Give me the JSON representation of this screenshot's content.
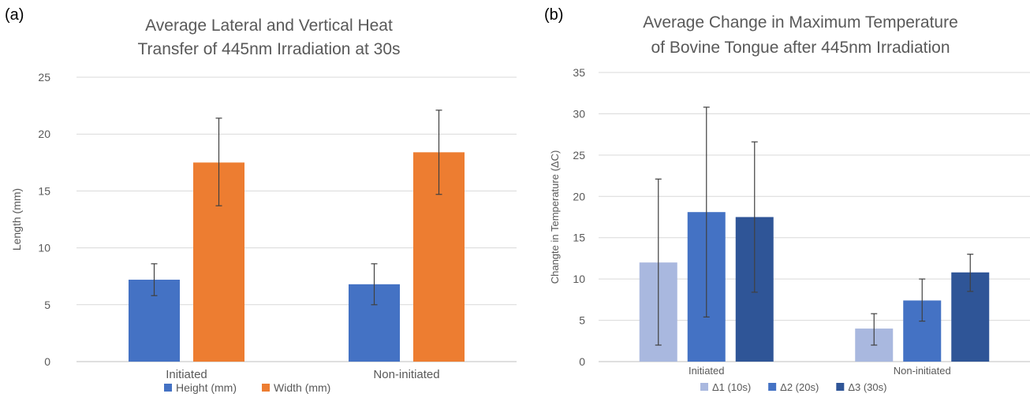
{
  "panels": {
    "a": {
      "tag": "(a)"
    },
    "b": {
      "tag": "(b)"
    }
  },
  "chart_data": [
    {
      "type": "bar",
      "title_lines": [
        "Average Lateral and Vertical Heat",
        "Transfer of 445nm Irradiation at 30s"
      ],
      "xlabel": "",
      "ylabel": "Length (mm)",
      "ylim": [
        0,
        25
      ],
      "yticks": [
        0,
        5,
        10,
        15,
        20,
        25
      ],
      "grid": true,
      "legend_position": "bottom",
      "categories": [
        "Initiated",
        "Non-initiated"
      ],
      "series": [
        {
          "name": "Height (mm)",
          "color": "#4472C4",
          "values": [
            7.2,
            6.8
          ],
          "error_low": [
            5.8,
            5.0
          ],
          "error_high": [
            8.6,
            8.6
          ]
        },
        {
          "name": "Width (mm)",
          "color": "#ED7D31",
          "values": [
            17.5,
            18.4
          ],
          "error_low": [
            13.7,
            14.7
          ],
          "error_high": [
            21.4,
            22.1
          ]
        }
      ]
    },
    {
      "type": "bar",
      "title_lines": [
        "Average Change in Maximum Temperature",
        "of Bovine Tongue after 445nm Irradiation"
      ],
      "xlabel": "",
      "ylabel": "Changte in Temperature (ΔC)",
      "ylim": [
        0,
        35
      ],
      "yticks": [
        0,
        5,
        10,
        15,
        20,
        25,
        30,
        35
      ],
      "grid": true,
      "legend_position": "bottom",
      "categories": [
        "Initiated",
        "Non-initiated"
      ],
      "series": [
        {
          "name": "Δ1 (10s)",
          "color": "#A9B8DF",
          "values": [
            12.0,
            4.0
          ],
          "error_low": [
            2.0,
            2.0
          ],
          "error_high": [
            22.1,
            5.8
          ]
        },
        {
          "name": "Δ2 (20s)",
          "color": "#4472C4",
          "values": [
            18.1,
            7.4
          ],
          "error_low": [
            5.4,
            4.9
          ],
          "error_high": [
            30.8,
            10.0
          ]
        },
        {
          "name": "Δ3 (30s)",
          "color": "#2F5597",
          "values": [
            17.5,
            10.8
          ],
          "error_low": [
            8.4,
            8.5
          ],
          "error_high": [
            26.6,
            13.0
          ]
        }
      ]
    }
  ]
}
